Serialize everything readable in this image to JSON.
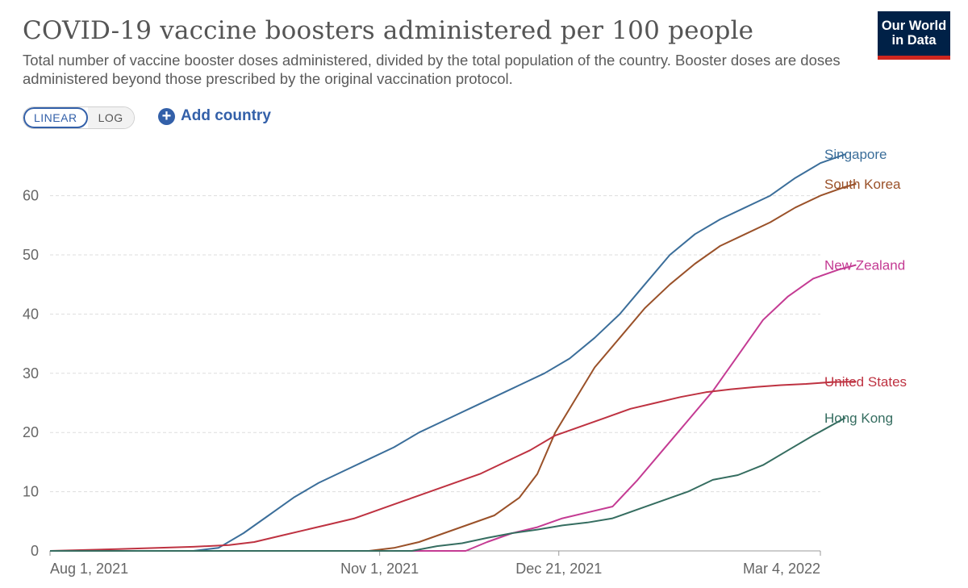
{
  "title": "COVID-19 vaccine boosters administered per 100 people",
  "subtitle": "Total number of vaccine booster doses administered, divided by the total population of the country. Booster doses are doses administered beyond those prescribed by the original vaccination protocol.",
  "logo": {
    "line1": "Our World",
    "line2": "in Data",
    "bg": "#002147",
    "accent": "#ce261e"
  },
  "controls": {
    "scale_options": [
      "LINEAR",
      "LOG"
    ],
    "selected_scale": "LINEAR",
    "add_country_label": "Add country",
    "add_country_icon": "plus-circle-icon"
  },
  "chart_data": {
    "type": "line",
    "title": "COVID-19 vaccine boosters administered per 100 people",
    "xlabel": "",
    "ylabel": "",
    "xlim": [
      "2021-08-01",
      "2022-03-04"
    ],
    "ylim": [
      0,
      68
    ],
    "x_ticks": [
      {
        "date": "2021-08-01",
        "label": "Aug 1, 2021"
      },
      {
        "date": "2021-11-01",
        "label": "Nov 1, 2021"
      },
      {
        "date": "2021-12-21",
        "label": "Dec 21, 2021"
      },
      {
        "date": "2022-03-04",
        "label": "Mar 4, 2022"
      }
    ],
    "y_ticks": [
      0,
      10,
      20,
      30,
      40,
      50,
      60
    ],
    "grid": "horizontal dashed",
    "legend": "labels at line ends (right)",
    "series": [
      {
        "name": "Singapore",
        "color": "#3b6e9a",
        "points": [
          [
            "2021-08-01",
            0
          ],
          [
            "2021-09-10",
            0
          ],
          [
            "2021-09-17",
            0.5
          ],
          [
            "2021-09-24",
            3
          ],
          [
            "2021-10-01",
            6
          ],
          [
            "2021-10-08",
            9
          ],
          [
            "2021-10-15",
            11.5
          ],
          [
            "2021-10-22",
            13.5
          ],
          [
            "2021-10-29",
            15.5
          ],
          [
            "2021-11-05",
            17.5
          ],
          [
            "2021-11-12",
            20
          ],
          [
            "2021-11-19",
            22
          ],
          [
            "2021-11-26",
            24
          ],
          [
            "2021-12-03",
            26
          ],
          [
            "2021-12-10",
            28
          ],
          [
            "2021-12-17",
            30
          ],
          [
            "2021-12-24",
            32.5
          ],
          [
            "2021-12-31",
            36
          ],
          [
            "2022-01-07",
            40
          ],
          [
            "2022-01-14",
            45
          ],
          [
            "2022-01-21",
            50
          ],
          [
            "2022-01-28",
            53.5
          ],
          [
            "2022-02-04",
            56
          ],
          [
            "2022-02-11",
            58
          ],
          [
            "2022-02-18",
            60
          ],
          [
            "2022-02-25",
            63
          ],
          [
            "2022-03-04",
            65.5
          ],
          [
            "2022-03-11",
            67
          ]
        ]
      },
      {
        "name": "South Korea",
        "color": "#9a5129",
        "points": [
          [
            "2021-08-01",
            0
          ],
          [
            "2021-10-29",
            0
          ],
          [
            "2021-11-05",
            0.5
          ],
          [
            "2021-11-12",
            1.5
          ],
          [
            "2021-11-19",
            3
          ],
          [
            "2021-11-26",
            4.5
          ],
          [
            "2021-12-03",
            6
          ],
          [
            "2021-12-10",
            9
          ],
          [
            "2021-12-15",
            13
          ],
          [
            "2021-12-20",
            20
          ],
          [
            "2021-12-25",
            25
          ],
          [
            "2021-12-31",
            31
          ],
          [
            "2022-01-07",
            36
          ],
          [
            "2022-01-14",
            41
          ],
          [
            "2022-01-21",
            45
          ],
          [
            "2022-01-28",
            48.5
          ],
          [
            "2022-02-04",
            51.5
          ],
          [
            "2022-02-11",
            53.5
          ],
          [
            "2022-02-18",
            55.5
          ],
          [
            "2022-02-25",
            58
          ],
          [
            "2022-03-04",
            60
          ],
          [
            "2022-03-11",
            61.5
          ],
          [
            "2022-03-14",
            62
          ]
        ]
      },
      {
        "name": "New Zealand",
        "color": "#c43b93",
        "points": [
          [
            "2021-08-01",
            0
          ],
          [
            "2021-11-25",
            0
          ],
          [
            "2021-12-01",
            1.5
          ],
          [
            "2021-12-08",
            3
          ],
          [
            "2021-12-15",
            4
          ],
          [
            "2021-12-22",
            5.5
          ],
          [
            "2021-12-29",
            6.5
          ],
          [
            "2022-01-05",
            7.5
          ],
          [
            "2022-01-12",
            12
          ],
          [
            "2022-01-19",
            17
          ],
          [
            "2022-01-26",
            22
          ],
          [
            "2022-02-02",
            27
          ],
          [
            "2022-02-09",
            33
          ],
          [
            "2022-02-16",
            39
          ],
          [
            "2022-02-23",
            43
          ],
          [
            "2022-03-02",
            46
          ],
          [
            "2022-03-09",
            47.5
          ],
          [
            "2022-03-14",
            48.3
          ]
        ]
      },
      {
        "name": "United States",
        "color": "#be3241",
        "points": [
          [
            "2021-08-01",
            0
          ],
          [
            "2021-08-20",
            0.3
          ],
          [
            "2021-09-10",
            0.7
          ],
          [
            "2021-09-20",
            1
          ],
          [
            "2021-09-27",
            1.5
          ],
          [
            "2021-10-04",
            2.5
          ],
          [
            "2021-10-11",
            3.5
          ],
          [
            "2021-10-18",
            4.5
          ],
          [
            "2021-10-25",
            5.5
          ],
          [
            "2021-11-01",
            7
          ],
          [
            "2021-11-08",
            8.5
          ],
          [
            "2021-11-15",
            10
          ],
          [
            "2021-11-22",
            11.5
          ],
          [
            "2021-11-29",
            13
          ],
          [
            "2021-12-06",
            15
          ],
          [
            "2021-12-13",
            17
          ],
          [
            "2021-12-20",
            19.5
          ],
          [
            "2021-12-27",
            21
          ],
          [
            "2022-01-03",
            22.5
          ],
          [
            "2022-01-10",
            24
          ],
          [
            "2022-01-17",
            25
          ],
          [
            "2022-01-24",
            26
          ],
          [
            "2022-01-31",
            26.8
          ],
          [
            "2022-02-07",
            27.3
          ],
          [
            "2022-02-14",
            27.7
          ],
          [
            "2022-02-21",
            28
          ],
          [
            "2022-02-28",
            28.2
          ],
          [
            "2022-03-07",
            28.5
          ],
          [
            "2022-03-14",
            28.6
          ]
        ]
      },
      {
        "name": "Hong Kong",
        "color": "#356d60",
        "points": [
          [
            "2021-08-01",
            0
          ],
          [
            "2021-11-10",
            0
          ],
          [
            "2021-11-17",
            0.8
          ],
          [
            "2021-11-24",
            1.3
          ],
          [
            "2021-12-01",
            2.2
          ],
          [
            "2021-12-08",
            3
          ],
          [
            "2021-12-15",
            3.6
          ],
          [
            "2021-12-22",
            4.3
          ],
          [
            "2021-12-29",
            4.8
          ],
          [
            "2022-01-05",
            5.5
          ],
          [
            "2022-01-12",
            7
          ],
          [
            "2022-01-19",
            8.5
          ],
          [
            "2022-01-26",
            10
          ],
          [
            "2022-02-02",
            12
          ],
          [
            "2022-02-09",
            12.8
          ],
          [
            "2022-02-16",
            14.5
          ],
          [
            "2022-02-23",
            17
          ],
          [
            "2022-03-02",
            19.5
          ],
          [
            "2022-03-11",
            22.5
          ]
        ]
      }
    ]
  }
}
